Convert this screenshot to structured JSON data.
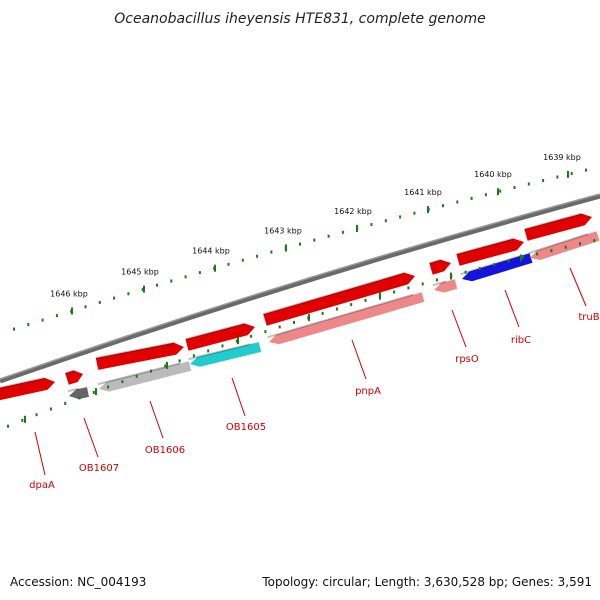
{
  "title": "Oceanobacillus iheyensis HTE831, complete genome",
  "footer": {
    "accession": "Accession: NC_004193",
    "summary": "Topology: circular; Length: 3,630,528 bp; Genes: 3,591"
  },
  "scale_labels": [
    "1646 kbp",
    "1645 kbp",
    "1644 kbp",
    "1643 kbp",
    "1642 kbp",
    "1641 kbp",
    "1640 kbp",
    "1639 kbp"
  ],
  "genes": [
    {
      "name": "dpaA",
      "color": "#e00000",
      "strand": "forward"
    },
    {
      "name": "OB1607",
      "color": "#666666",
      "strand": "reverse"
    },
    {
      "name": "OB1606",
      "color": "#bbbbbb",
      "strand": "reverse"
    },
    {
      "name": "OB1605",
      "color": "#22cccc",
      "strand": "reverse"
    },
    {
      "name": "pnpA",
      "color": "#ee8888",
      "strand": "reverse"
    },
    {
      "name": "rpsO",
      "color": "#ee8888",
      "strand": "reverse"
    },
    {
      "name": "ribC",
      "color": "#1414dd",
      "strand": "reverse"
    },
    {
      "name": "truB",
      "color": "#ee8888",
      "strand": "reverse"
    }
  ],
  "colors": {
    "forward_track": "#e00000",
    "backbone": "#808080",
    "tick": "#1a7a1a",
    "label": "#cc0000"
  }
}
